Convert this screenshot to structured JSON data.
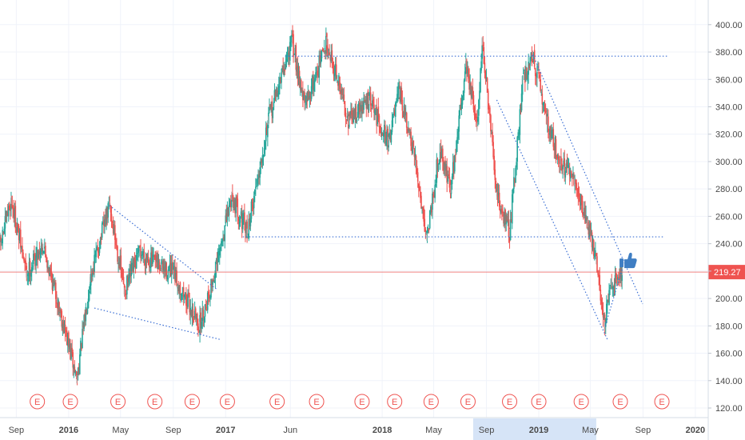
{
  "chart_data": {
    "type": "candlestick",
    "y_axis": {
      "min": 113,
      "max": 418,
      "position": "right",
      "ticks": [
        120,
        140,
        160,
        180,
        200,
        220,
        240,
        260,
        280,
        300,
        320,
        340,
        360,
        380,
        400
      ],
      "tick_labels": [
        "120.00",
        "140.00",
        "160.00",
        "180.00",
        "200.00",
        "220.00",
        "240.00",
        "260.00",
        "280.00",
        "300.00",
        "320.00",
        "340.00",
        "360.00",
        "380.00",
        "400.00"
      ]
    },
    "x_axis": {
      "start": "2015-07-25",
      "end": "2020-01-31",
      "ticks": [
        {
          "date": "2015-09-01",
          "label": "Sep",
          "bold": false
        },
        {
          "date": "2016-01-01",
          "label": "2016",
          "bold": true
        },
        {
          "date": "2016-05-01",
          "label": "May",
          "bold": false
        },
        {
          "date": "2016-09-01",
          "label": "Sep",
          "bold": false
        },
        {
          "date": "2017-01-01",
          "label": "2017",
          "bold": true
        },
        {
          "date": "2017-06-01",
          "label": "Jun",
          "bold": false
        },
        {
          "date": "2018-01-01",
          "label": "2018",
          "bold": true
        },
        {
          "date": "2018-05-01",
          "label": "May",
          "bold": false
        },
        {
          "date": "2018-09-01",
          "label": "Sep",
          "bold": false
        },
        {
          "date": "2019-01-01",
          "label": "2019",
          "bold": true
        },
        {
          "date": "2019-05-01",
          "label": "May",
          "bold": false
        },
        {
          "date": "2019-09-01",
          "label": "Sep",
          "bold": false
        },
        {
          "date": "2020-01-01",
          "label": "2020",
          "bold": true
        }
      ],
      "highlight_range": [
        "2018-08-01",
        "2019-05-15"
      ]
    },
    "last_price": {
      "value": 219.27,
      "label": "219.27",
      "color": "#ef5350"
    },
    "earnings_markers": {
      "label": "E",
      "color": "#ef5350",
      "dates": [
        "2015-10-20",
        "2016-01-05",
        "2016-04-25",
        "2016-07-20",
        "2016-10-15",
        "2017-01-05",
        "2017-05-01",
        "2017-08-01",
        "2017-11-15",
        "2018-01-30",
        "2018-04-25",
        "2018-07-20",
        "2018-10-25",
        "2019-01-01",
        "2019-04-10",
        "2019-07-10",
        "2019-10-15"
      ]
    },
    "series": [
      {
        "up_color": "#26a69a",
        "down_color": "#ef5350",
        "keypoints": [
          [
            "2015-07-25",
            238
          ],
          [
            "2015-08-20",
            272
          ],
          [
            "2015-09-25",
            218
          ],
          [
            "2015-11-01",
            240
          ],
          [
            "2015-12-05",
            200
          ],
          [
            "2016-01-20",
            141
          ],
          [
            "2016-02-20",
            215
          ],
          [
            "2016-04-05",
            268
          ],
          [
            "2016-05-10",
            205
          ],
          [
            "2016-06-15",
            234
          ],
          [
            "2016-08-05",
            222
          ],
          [
            "2016-09-01",
            218
          ],
          [
            "2016-11-01",
            180
          ],
          [
            "2016-12-10",
            222
          ],
          [
            "2017-01-15",
            275
          ],
          [
            "2017-02-20",
            248
          ],
          [
            "2017-04-10",
            330
          ],
          [
            "2017-06-05",
            388
          ],
          [
            "2017-07-05",
            340
          ],
          [
            "2017-08-25",
            388
          ],
          [
            "2017-10-15",
            330
          ],
          [
            "2017-12-01",
            345
          ],
          [
            "2018-01-15",
            315
          ],
          [
            "2018-02-10",
            350
          ],
          [
            "2018-03-20",
            298
          ],
          [
            "2018-04-15",
            245
          ],
          [
            "2018-05-15",
            310
          ],
          [
            "2018-06-10",
            280
          ],
          [
            "2018-07-15",
            372
          ],
          [
            "2018-08-10",
            325
          ],
          [
            "2018-08-22",
            388
          ],
          [
            "2018-09-25",
            275
          ],
          [
            "2018-10-25",
            248
          ],
          [
            "2018-11-25",
            360
          ],
          [
            "2018-12-18",
            378
          ],
          [
            "2019-01-20",
            330
          ],
          [
            "2019-02-20",
            300
          ],
          [
            "2019-03-25",
            285
          ],
          [
            "2019-04-25",
            255
          ],
          [
            "2019-05-15",
            228
          ],
          [
            "2019-06-03",
            180
          ],
          [
            "2019-06-20",
            212
          ],
          [
            "2019-07-15",
            220
          ]
        ]
      }
    ],
    "trend_lines": [
      {
        "x1": "2017-05-20",
        "y1": 377,
        "x2": "2019-10-31",
        "y2": 377
      },
      {
        "x1": "2017-02-10",
        "y1": 245,
        "x2": "2019-10-20",
        "y2": 245
      },
      {
        "x1": "2016-04-05",
        "y1": 268,
        "x2": "2016-12-10",
        "y2": 207
      },
      {
        "x1": "2016-03-01",
        "y1": 193,
        "x2": "2016-12-20",
        "y2": 170
      },
      {
        "x1": "2018-12-18",
        "y1": 378,
        "x2": "2019-08-31",
        "y2": 196
      },
      {
        "x1": "2018-09-25",
        "y1": 345,
        "x2": "2019-06-10",
        "y2": 170
      },
      {
        "x1": "2019-06-05",
        "y1": 180,
        "x2": "2019-07-15",
        "y2": 222
      }
    ],
    "annotation": {
      "icon": "thumbs-up-icon",
      "date": "2019-07-25",
      "value": 228,
      "color": "#3f7ec3"
    }
  }
}
